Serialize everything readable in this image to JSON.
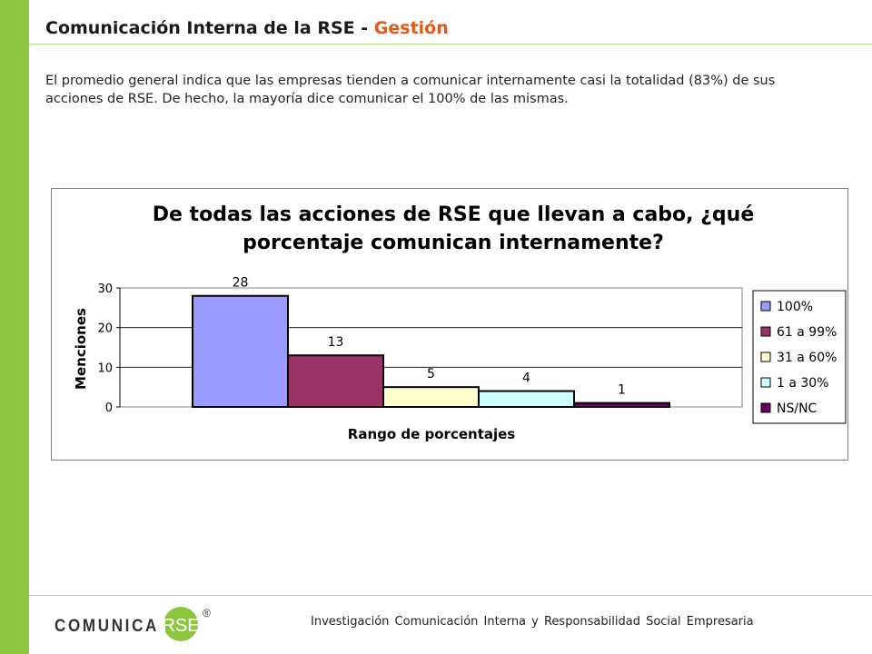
{
  "header": {
    "title_main": "Comunicación Interna de la RSE - ",
    "title_accent": "Gestión"
  },
  "intro_text": "El promedio general indica que las empresas tienden a comunicar internamente casi la totalidad (83%) de sus acciones de RSE. De hecho, la mayoría dice comunicar el 100% de las mismas.",
  "chart_data": {
    "type": "bar",
    "title_lines": [
      "De todas las acciones de RSE que llevan a cabo, ¿qué",
      "porcentaje comunican internamente?"
    ],
    "xlabel": "Rango de porcentajes",
    "ylabel": "Menciones",
    "ylim": [
      0,
      30
    ],
    "yticks": [
      0,
      10,
      20,
      30
    ],
    "grid": true,
    "legend_position": "right",
    "series": [
      {
        "name": "100%",
        "value": 28,
        "color": "#9999ff"
      },
      {
        "name": "61 a 99%",
        "value": 13,
        "color": "#993366"
      },
      {
        "name": "31 a 60%",
        "value": 5,
        "color": "#ffffcc"
      },
      {
        "name": "1 a 30%",
        "value": 4,
        "color": "#ccffff"
      },
      {
        "name": "NS/NC",
        "value": 1,
        "color": "#660066"
      }
    ]
  },
  "footer": {
    "logo_text": "COMUNICA",
    "logo_badge": "RSE",
    "registered": "®",
    "caption": "Investigación Comunicación Interna y Responsabilidad Social Empresaria"
  }
}
